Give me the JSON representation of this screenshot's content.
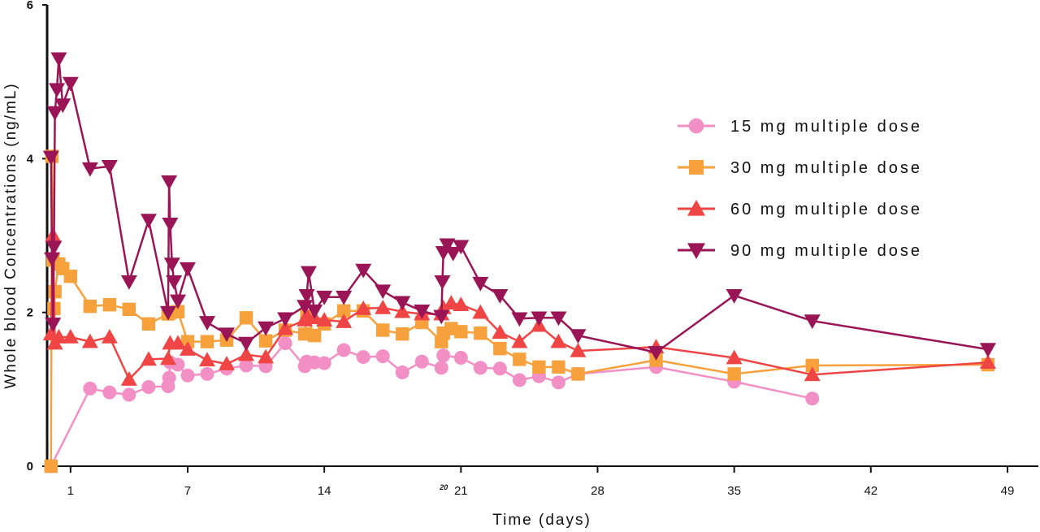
{
  "chart_data": {
    "type": "line",
    "title": "",
    "xlabel": "Time (days)",
    "ylabel": "Whole blood Concentrations (ng/mL)",
    "xlim": [
      -0.2,
      50
    ],
    "ylim": [
      0,
      6
    ],
    "xticks": [
      1,
      7,
      14,
      21,
      28,
      35,
      42,
      49
    ],
    "yticks": [
      0,
      2,
      4,
      6
    ],
    "annotations": [
      {
        "text": "20",
        "x": 20
      }
    ],
    "legend_position": "right",
    "grid": false,
    "series": [
      {
        "name": "15 mg multiple dose",
        "color": "#f28fc4",
        "marker": "circle",
        "points": [
          [
            0,
            0
          ],
          [
            2,
            1.01
          ],
          [
            3,
            0.96
          ],
          [
            4,
            0.93
          ],
          [
            5,
            1.03
          ],
          [
            6,
            1.04
          ],
          [
            6.05,
            1.15
          ],
          [
            6.1,
            1.35
          ],
          [
            6.5,
            1.32
          ],
          [
            7,
            1.18
          ],
          [
            8,
            1.2
          ],
          [
            9,
            1.27
          ],
          [
            10,
            1.31
          ],
          [
            11,
            1.3
          ],
          [
            12,
            1.6
          ],
          [
            13,
            1.3
          ],
          [
            13.1,
            1.36
          ],
          [
            13.5,
            1.35
          ],
          [
            14,
            1.34
          ],
          [
            15,
            1.51
          ],
          [
            16,
            1.42
          ],
          [
            17,
            1.43
          ],
          [
            18,
            1.22
          ],
          [
            19,
            1.36
          ],
          [
            20,
            1.28
          ],
          [
            20.1,
            1.44
          ],
          [
            21,
            1.41
          ],
          [
            22,
            1.28
          ],
          [
            23,
            1.27
          ],
          [
            24,
            1.12
          ],
          [
            25,
            1.17
          ],
          [
            26,
            1.09
          ],
          [
            27,
            1.2
          ],
          [
            31,
            1.29
          ],
          [
            35,
            1.1
          ],
          [
            39,
            0.88
          ]
        ]
      },
      {
        "name": "30 mg multiple dose",
        "color": "#f7a13c",
        "marker": "square",
        "points": [
          [
            0,
            0
          ],
          [
            0.05,
            4.03
          ],
          [
            0.1,
            2.68
          ],
          [
            0.15,
            2.05
          ],
          [
            0.2,
            2.27
          ],
          [
            0.4,
            2.63
          ],
          [
            0.6,
            2.57
          ],
          [
            1,
            2.47
          ],
          [
            2,
            2.08
          ],
          [
            3,
            2.1
          ],
          [
            4,
            2.04
          ],
          [
            5,
            1.85
          ],
          [
            6,
            1.98
          ],
          [
            6.1,
            2.0
          ],
          [
            6.5,
            2.01
          ],
          [
            7,
            1.62
          ],
          [
            8,
            1.62
          ],
          [
            9,
            1.64
          ],
          [
            10,
            1.93
          ],
          [
            11,
            1.63
          ],
          [
            12,
            1.77
          ],
          [
            13,
            1.72
          ],
          [
            13.1,
            1.95
          ],
          [
            13.5,
            1.7
          ],
          [
            14,
            1.85
          ],
          [
            15,
            2.02
          ],
          [
            16,
            2.02
          ],
          [
            17,
            1.77
          ],
          [
            18,
            1.72
          ],
          [
            19,
            1.87
          ],
          [
            20,
            1.62
          ],
          [
            20.1,
            1.73
          ],
          [
            20.5,
            1.79
          ],
          [
            21,
            1.75
          ],
          [
            22,
            1.73
          ],
          [
            23,
            1.53
          ],
          [
            24,
            1.39
          ],
          [
            25,
            1.29
          ],
          [
            26,
            1.29
          ],
          [
            27,
            1.2
          ],
          [
            31,
            1.38
          ],
          [
            35,
            1.2
          ],
          [
            39,
            1.31
          ],
          [
            48,
            1.32
          ]
        ]
      },
      {
        "name": "60 mg multiple dose",
        "color": "#ef4545",
        "marker": "triangle-up",
        "points": [
          [
            0,
            1.72
          ],
          [
            0.1,
            3.0
          ],
          [
            0.2,
            1.6
          ],
          [
            0.4,
            1.68
          ],
          [
            1,
            1.68
          ],
          [
            2,
            1.62
          ],
          [
            3,
            1.68
          ],
          [
            4,
            1.13
          ],
          [
            5,
            1.39
          ],
          [
            6,
            1.4
          ],
          [
            6.1,
            1.6
          ],
          [
            6.5,
            1.6
          ],
          [
            7,
            1.52
          ],
          [
            8,
            1.38
          ],
          [
            9,
            1.33
          ],
          [
            10,
            1.45
          ],
          [
            11,
            1.42
          ],
          [
            12,
            1.79
          ],
          [
            13,
            1.9
          ],
          [
            13.1,
            1.96
          ],
          [
            13.5,
            1.93
          ],
          [
            14,
            1.9
          ],
          [
            15,
            1.88
          ],
          [
            16,
            2.05
          ],
          [
            17,
            2.06
          ],
          [
            18,
            2.01
          ],
          [
            19,
            1.98
          ],
          [
            20,
            1.98
          ],
          [
            20.1,
            2.06
          ],
          [
            20.5,
            2.12
          ],
          [
            21,
            2.1
          ],
          [
            22,
            2.0
          ],
          [
            23,
            1.74
          ],
          [
            24,
            1.62
          ],
          [
            25,
            1.83
          ],
          [
            26,
            1.62
          ],
          [
            27,
            1.5
          ],
          [
            31,
            1.55
          ],
          [
            35,
            1.41
          ],
          [
            39,
            1.19
          ],
          [
            48,
            1.35
          ]
        ]
      },
      {
        "name": "90 mg multiple dose",
        "color": "#9a1556",
        "marker": "triangle-down",
        "points": [
          [
            0,
            4.02
          ],
          [
            0.05,
            2.7
          ],
          [
            0.1,
            1.85
          ],
          [
            0.15,
            2.85
          ],
          [
            0.2,
            4.6
          ],
          [
            0.3,
            4.9
          ],
          [
            0.4,
            5.3
          ],
          [
            0.6,
            4.7
          ],
          [
            1,
            4.98
          ],
          [
            2,
            3.87
          ],
          [
            3,
            3.9
          ],
          [
            4,
            2.4
          ],
          [
            5,
            3.2
          ],
          [
            6,
            2.0
          ],
          [
            6.05,
            3.7
          ],
          [
            6.1,
            3.15
          ],
          [
            6.2,
            2.63
          ],
          [
            6.3,
            2.4
          ],
          [
            6.5,
            2.15
          ],
          [
            7,
            2.57
          ],
          [
            8,
            1.87
          ],
          [
            9,
            1.72
          ],
          [
            10,
            1.6
          ],
          [
            11,
            1.8
          ],
          [
            12,
            1.92
          ],
          [
            13,
            2.08
          ],
          [
            13.1,
            2.22
          ],
          [
            13.2,
            2.52
          ],
          [
            13.5,
            2.02
          ],
          [
            14,
            2.2
          ],
          [
            15,
            2.2
          ],
          [
            16,
            2.55
          ],
          [
            17,
            2.28
          ],
          [
            18,
            2.13
          ],
          [
            19,
            2.02
          ],
          [
            20,
            1.95
          ],
          [
            20.05,
            2.4
          ],
          [
            20.1,
            2.78
          ],
          [
            20.3,
            2.88
          ],
          [
            20.6,
            2.77
          ],
          [
            21,
            2.86
          ],
          [
            22,
            2.38
          ],
          [
            23,
            2.22
          ],
          [
            24,
            1.92
          ],
          [
            25,
            1.93
          ],
          [
            26,
            1.93
          ],
          [
            27,
            1.7
          ],
          [
            31,
            1.48
          ],
          [
            35,
            2.22
          ],
          [
            39,
            1.89
          ],
          [
            48,
            1.52
          ]
        ]
      }
    ]
  }
}
